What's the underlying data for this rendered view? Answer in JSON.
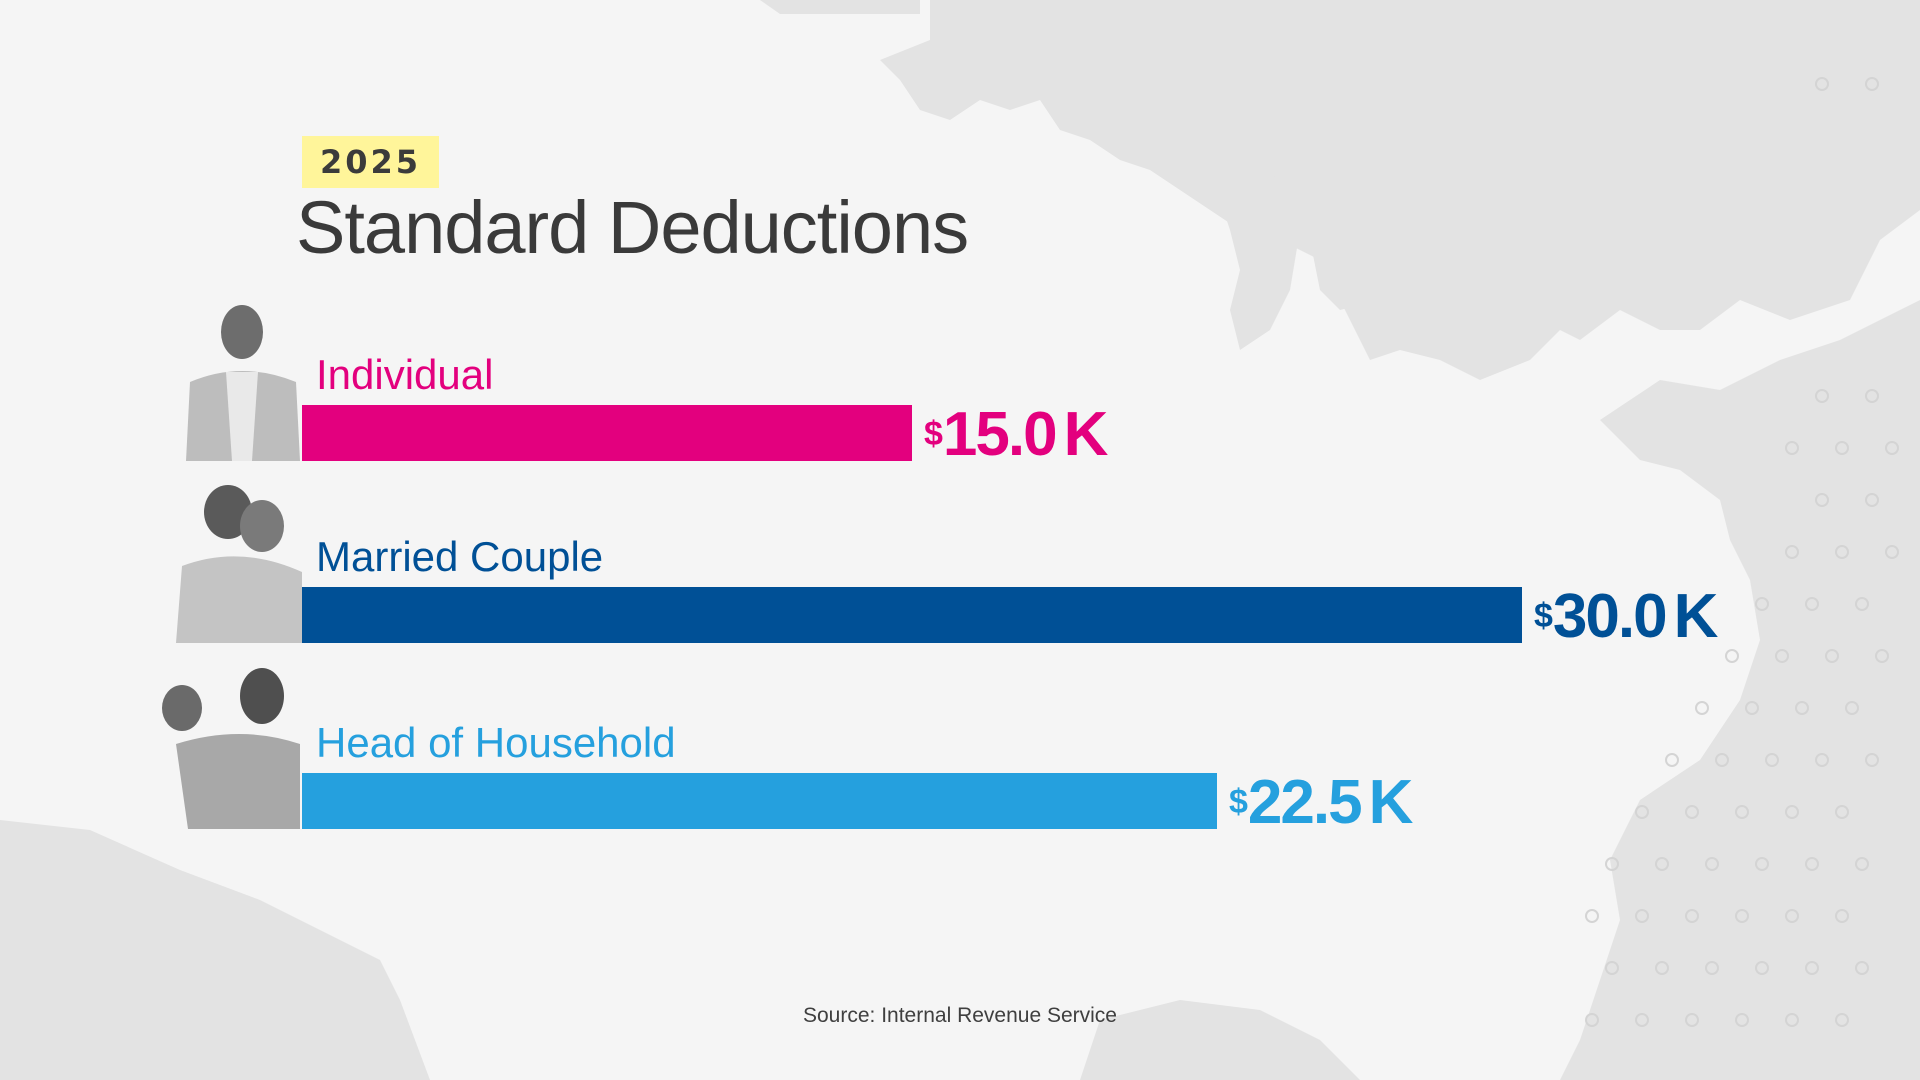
{
  "year_badge": "2025",
  "title": "Standard Deductions",
  "source": "Source: Internal Revenue Service",
  "chart_data": {
    "type": "bar",
    "orientation": "horizontal",
    "categories": [
      "Individual",
      "Married Couple",
      "Head of Household"
    ],
    "values": [
      15.0,
      30.0,
      22.5
    ],
    "value_labels": [
      {
        "currency": "$",
        "number": "15.0",
        "unit": "K"
      },
      {
        "currency": "$",
        "number": "30.0",
        "unit": "K"
      },
      {
        "currency": "$",
        "number": "22.5",
        "unit": "K"
      }
    ],
    "colors": [
      "#e3007e",
      "#005096",
      "#25a0de"
    ],
    "xlim": [
      0,
      30.0
    ],
    "grid": false,
    "legend": "none"
  },
  "colors": {
    "background": "#f5f5f5",
    "map": "#e4e4e4",
    "badge": "#fff59a"
  },
  "icons": [
    "person-photo-icon",
    "couple-photo-icon",
    "family-photo-icon",
    "us-map-background"
  ]
}
